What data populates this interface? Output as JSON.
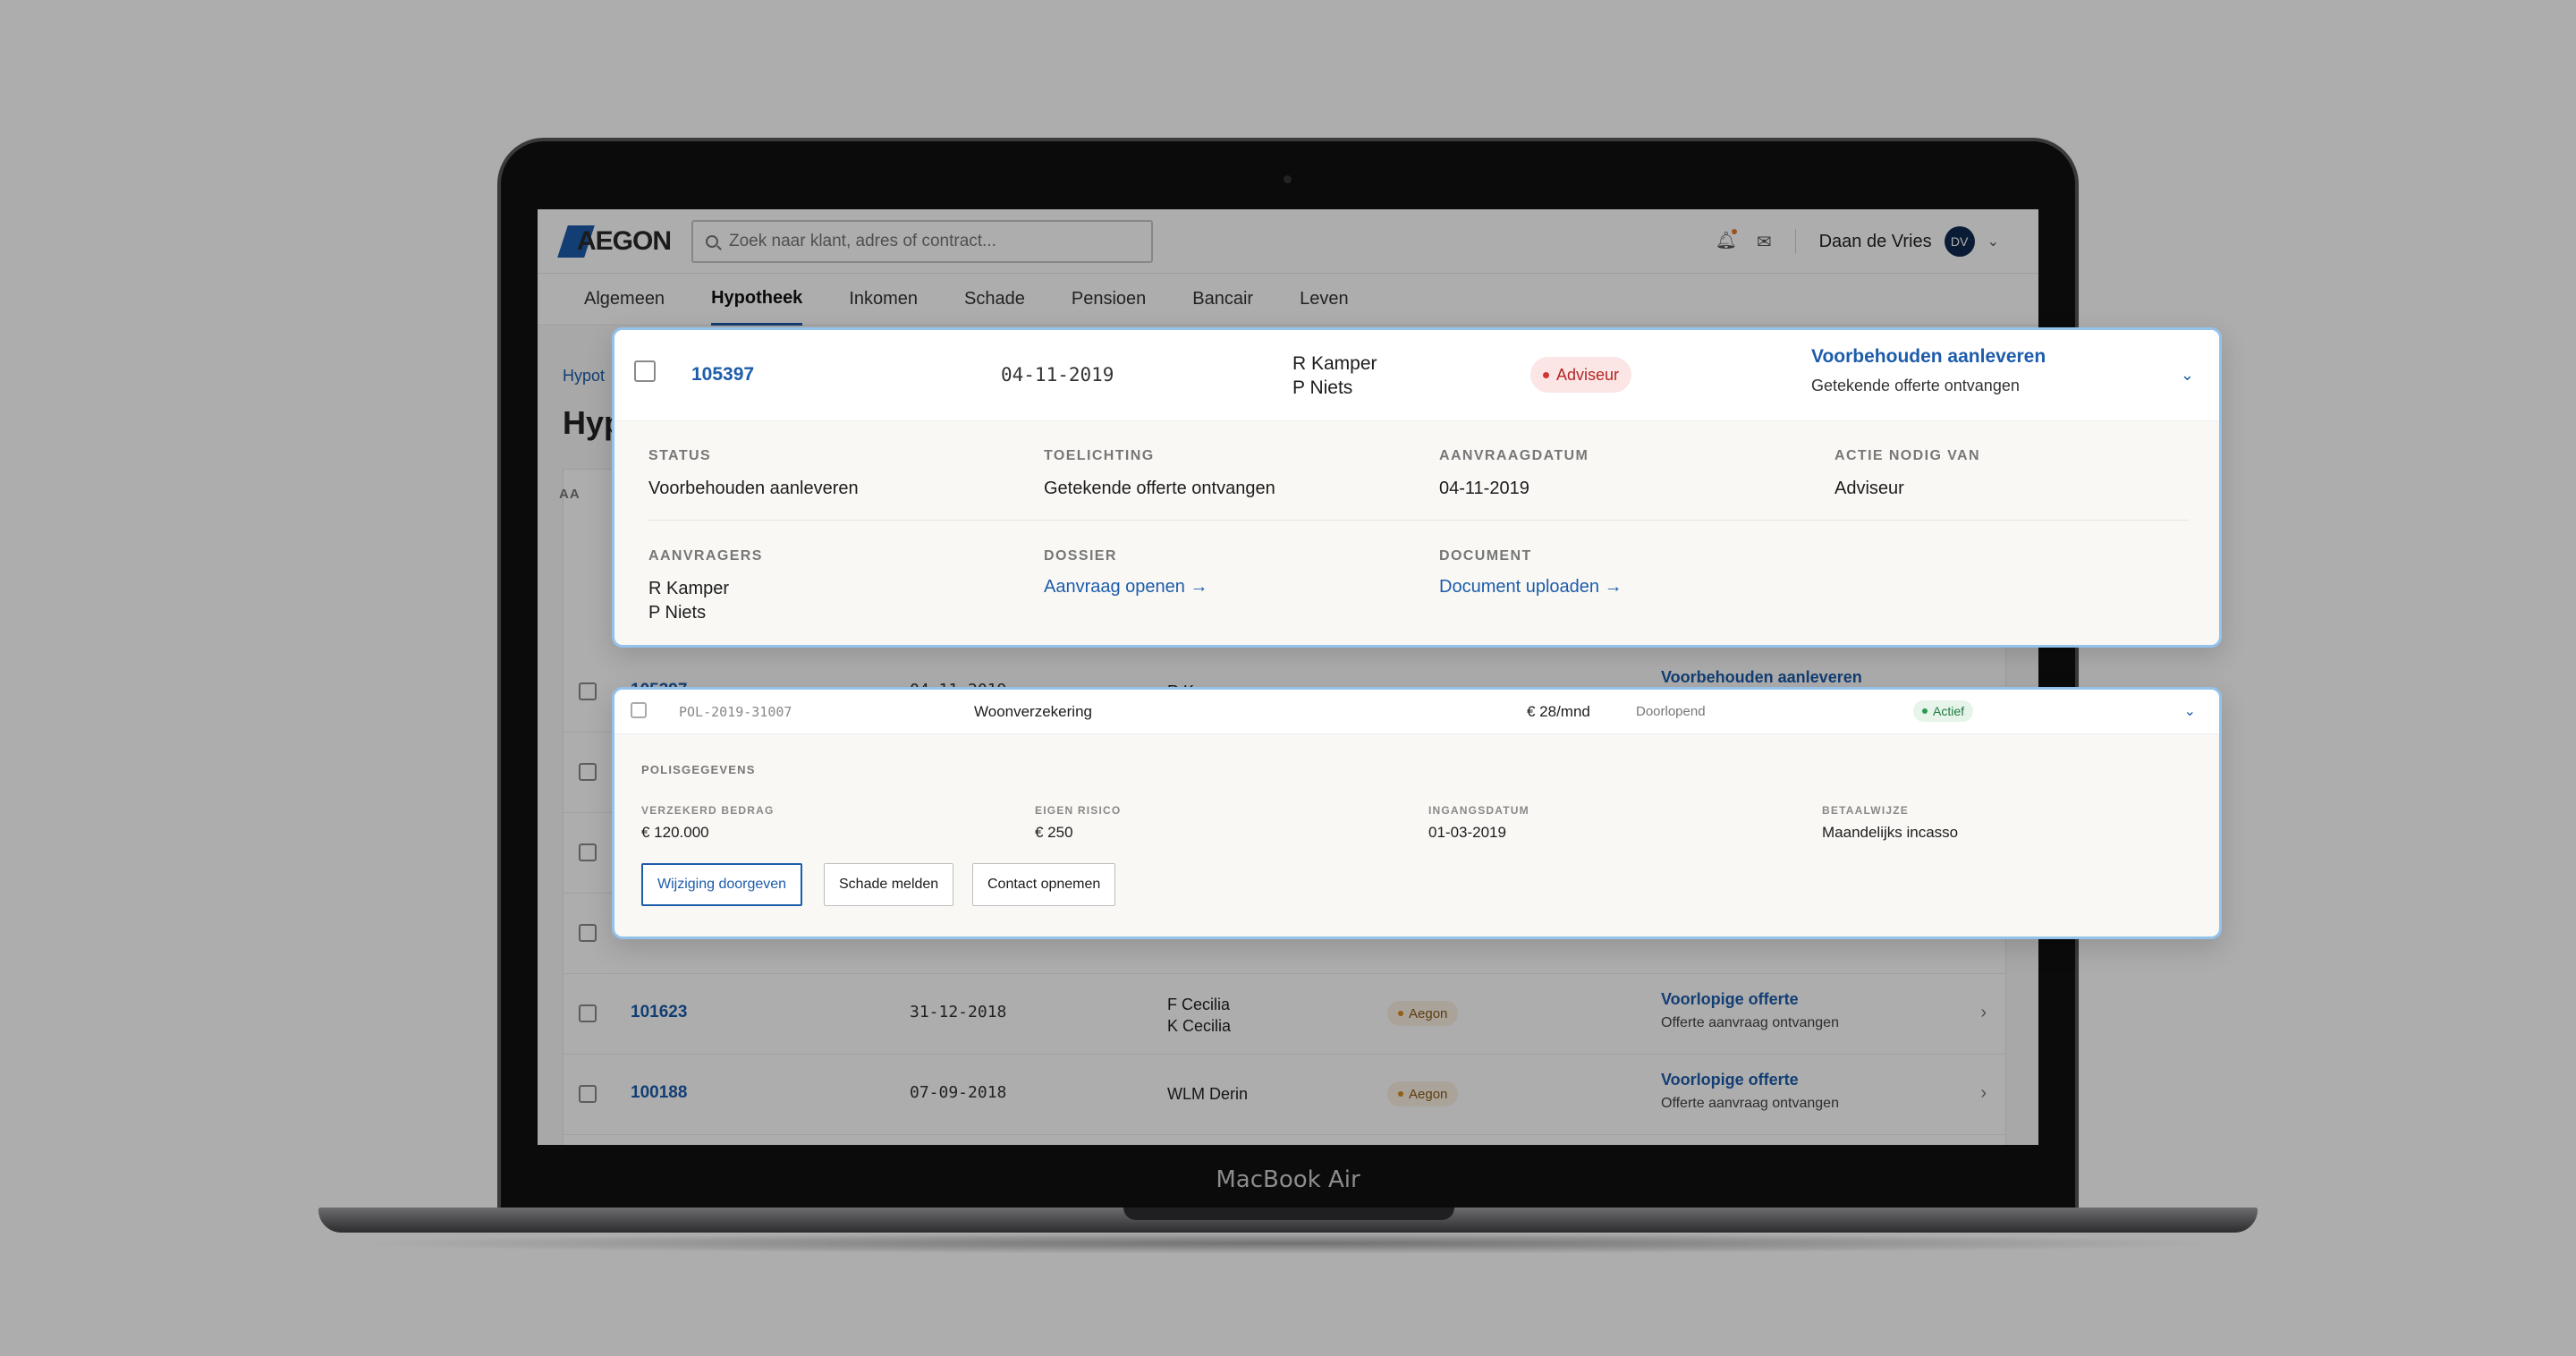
{
  "device": {
    "label": "MacBook Air"
  },
  "header": {
    "logo_text": "AEGON",
    "search_placeholder": "Zoek naar klant, adres of contract...",
    "user_name": "Daan de Vries",
    "user_initials": "DV"
  },
  "nav": {
    "tabs": [
      "Algemeen",
      "Hypotheek",
      "Inkomen",
      "Schade",
      "Pensioen",
      "Bancair",
      "Leven"
    ],
    "active": "Hypotheek"
  },
  "page": {
    "breadcrumb": "Hypot",
    "title": "Hyp",
    "list_header": "AA"
  },
  "rows": [
    {
      "id": "105397",
      "date": "04-11-2019",
      "names": [
        "R Kamper"
      ],
      "status_title": "Voorbehouden aanleveren",
      "status_sub": ""
    },
    {
      "id": "101623",
      "date": "31-12-2018",
      "names": [
        "F Cecilia",
        "K Cecilia"
      ],
      "badge": "Aegon",
      "status_title": "Voorlopige offerte",
      "status_sub": "Offerte aanvraag ontvangen"
    },
    {
      "id": "100188",
      "date": "07-09-2018",
      "names": [
        "WLM Derin"
      ],
      "badge": "Aegon",
      "status_title": "Voorlopige offerte",
      "status_sub": "Offerte aanvraag ontvangen"
    }
  ],
  "expanded_row": {
    "id": "105397",
    "date": "04-11-2019",
    "names": [
      "R Kamper",
      "P Niets"
    ],
    "badge": "Adviseur",
    "status_title": "Voorbehouden aanleveren",
    "status_sub": "Getekende offerte ontvangen",
    "fields": {
      "status": {
        "label": "STATUS",
        "value": "Voorbehouden aanleveren"
      },
      "toelichting": {
        "label": "TOELICHTING",
        "value": "Getekende offerte ontvangen"
      },
      "aanvraagdatum": {
        "label": "AANVRAAGDATUM",
        "value": "04-11-2019"
      },
      "actie": {
        "label": "ACTIE NODIG VAN",
        "value": "Adviseur"
      },
      "aanvragers": {
        "label": "AANVRAGERS",
        "values": [
          "R Kamper",
          "P Niets"
        ]
      },
      "dossier": {
        "label": "DOSSIER",
        "link": "Aanvraag openen →"
      },
      "document": {
        "label": "DOCUMENT",
        "link": "Document uploaden →"
      }
    }
  },
  "policy_row": {
    "policy_no": "POL-2019-31007",
    "type": "Woonverzekering",
    "amount": "€ 28/mnd",
    "duration": "Doorlopend",
    "badge": "Actief",
    "section": "POLISGEGEVENS",
    "fields": {
      "verzekerd": {
        "label": "VERZEKERD BEDRAG",
        "value": "€ 120.000"
      },
      "eigen_risico": {
        "label": "EIGEN RISICO",
        "value": "€ 250"
      },
      "ingangsdatum": {
        "label": "INGANGSDATUM",
        "value": "01-03-2019"
      },
      "betaalwijze": {
        "label": "BETAALWIJZE",
        "value": "Maandelijks incasso"
      }
    },
    "buttons": {
      "change": "Wijziging doorgeven",
      "claim": "Schade melden",
      "contact": "Contact opnemen"
    }
  },
  "colors": {
    "brand_blue": "#1d5cab",
    "panel_border": "#93c2ec",
    "adviseur_red": "#d43333",
    "aegon_orange": "#d98b23",
    "actief_green": "#2c9a52"
  }
}
